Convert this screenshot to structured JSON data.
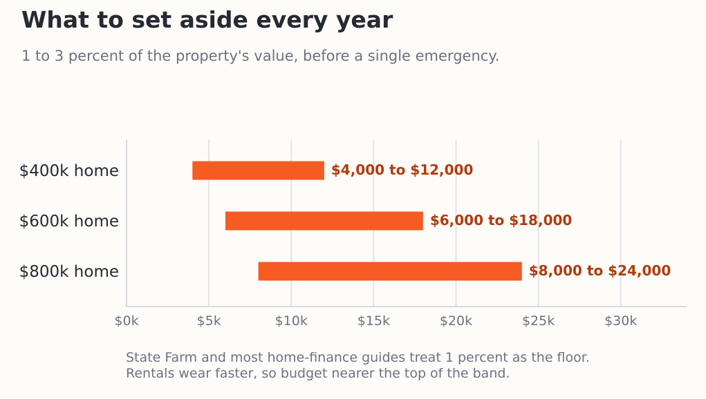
{
  "title": "What to set aside every year",
  "subtitle": "1 to 3 percent of the property's value, before a single emergency.",
  "note": {
    "line1": "State Farm and most home-finance guides treat 1 percent as the floor.",
    "line2": "Rentals wear faster, so budget nearer the top of the band."
  },
  "colors": {
    "bar": "#f55b22",
    "label": "#b03c0e",
    "grid": "#e3e4e8",
    "axis": "#d9dbe0"
  },
  "chart_data": {
    "type": "bar",
    "orientation": "horizontal",
    "style": "range",
    "categories": [
      "$400k home",
      "$600k home",
      "$800k home"
    ],
    "ranges": [
      [
        4000,
        12000
      ],
      [
        6000,
        18000
      ],
      [
        8000,
        24000
      ]
    ],
    "data_labels": [
      "$4,000 to $12,000",
      "$6,000 to $18,000",
      "$8,000 to $24,000"
    ],
    "xlim": [
      0,
      34000
    ],
    "xticks": [
      0,
      5000,
      10000,
      15000,
      20000,
      25000,
      30000
    ],
    "xtick_labels": [
      "$0k",
      "$5k",
      "$10k",
      "$15k",
      "$20k",
      "$25k",
      "$30k"
    ],
    "grid": "vertical"
  }
}
